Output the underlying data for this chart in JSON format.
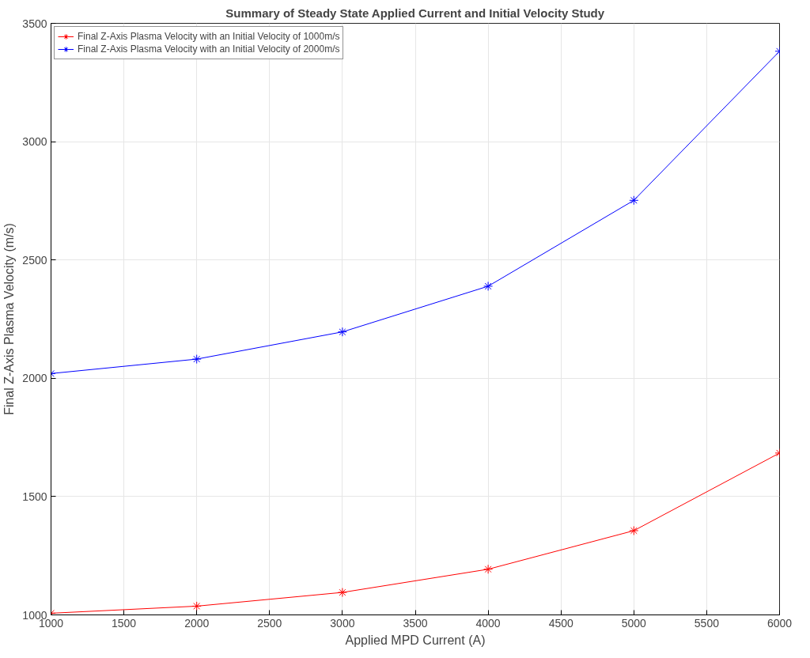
{
  "chart_data": {
    "type": "line",
    "title": "Summary of Steady State Applied Current and Initial Velocity Study",
    "xlabel": "Applied MPD Current (A)",
    "ylabel": "Final Z-Axis Plasma Velocity (m/s)",
    "x": [
      1000,
      2000,
      3000,
      4000,
      5000,
      6000
    ],
    "series": [
      {
        "name": "Final Z-Axis Plasma Velocity with an Initial Velocity of 1000m/s",
        "color": "#ff0000",
        "values": [
          1007,
          1037,
          1095,
          1193,
          1356,
          1684
        ]
      },
      {
        "name": "Final Z-Axis Plasma Velocity with an Initial Velocity of 2000m/s",
        "color": "#0000ff",
        "values": [
          2020,
          2081,
          2196,
          2389,
          2752,
          3382
        ]
      }
    ],
    "xlim": [
      1000,
      6000
    ],
    "xticks": [
      1000,
      1500,
      2000,
      2500,
      3000,
      3500,
      4000,
      4500,
      5000,
      5500,
      6000
    ],
    "ylim": [
      1000,
      3500
    ],
    "yticks": [
      1000,
      1500,
      2000,
      2500,
      3000,
      3500
    ],
    "grid": true,
    "legend": "top left",
    "marker": "cross",
    "line_style": "solid"
  }
}
